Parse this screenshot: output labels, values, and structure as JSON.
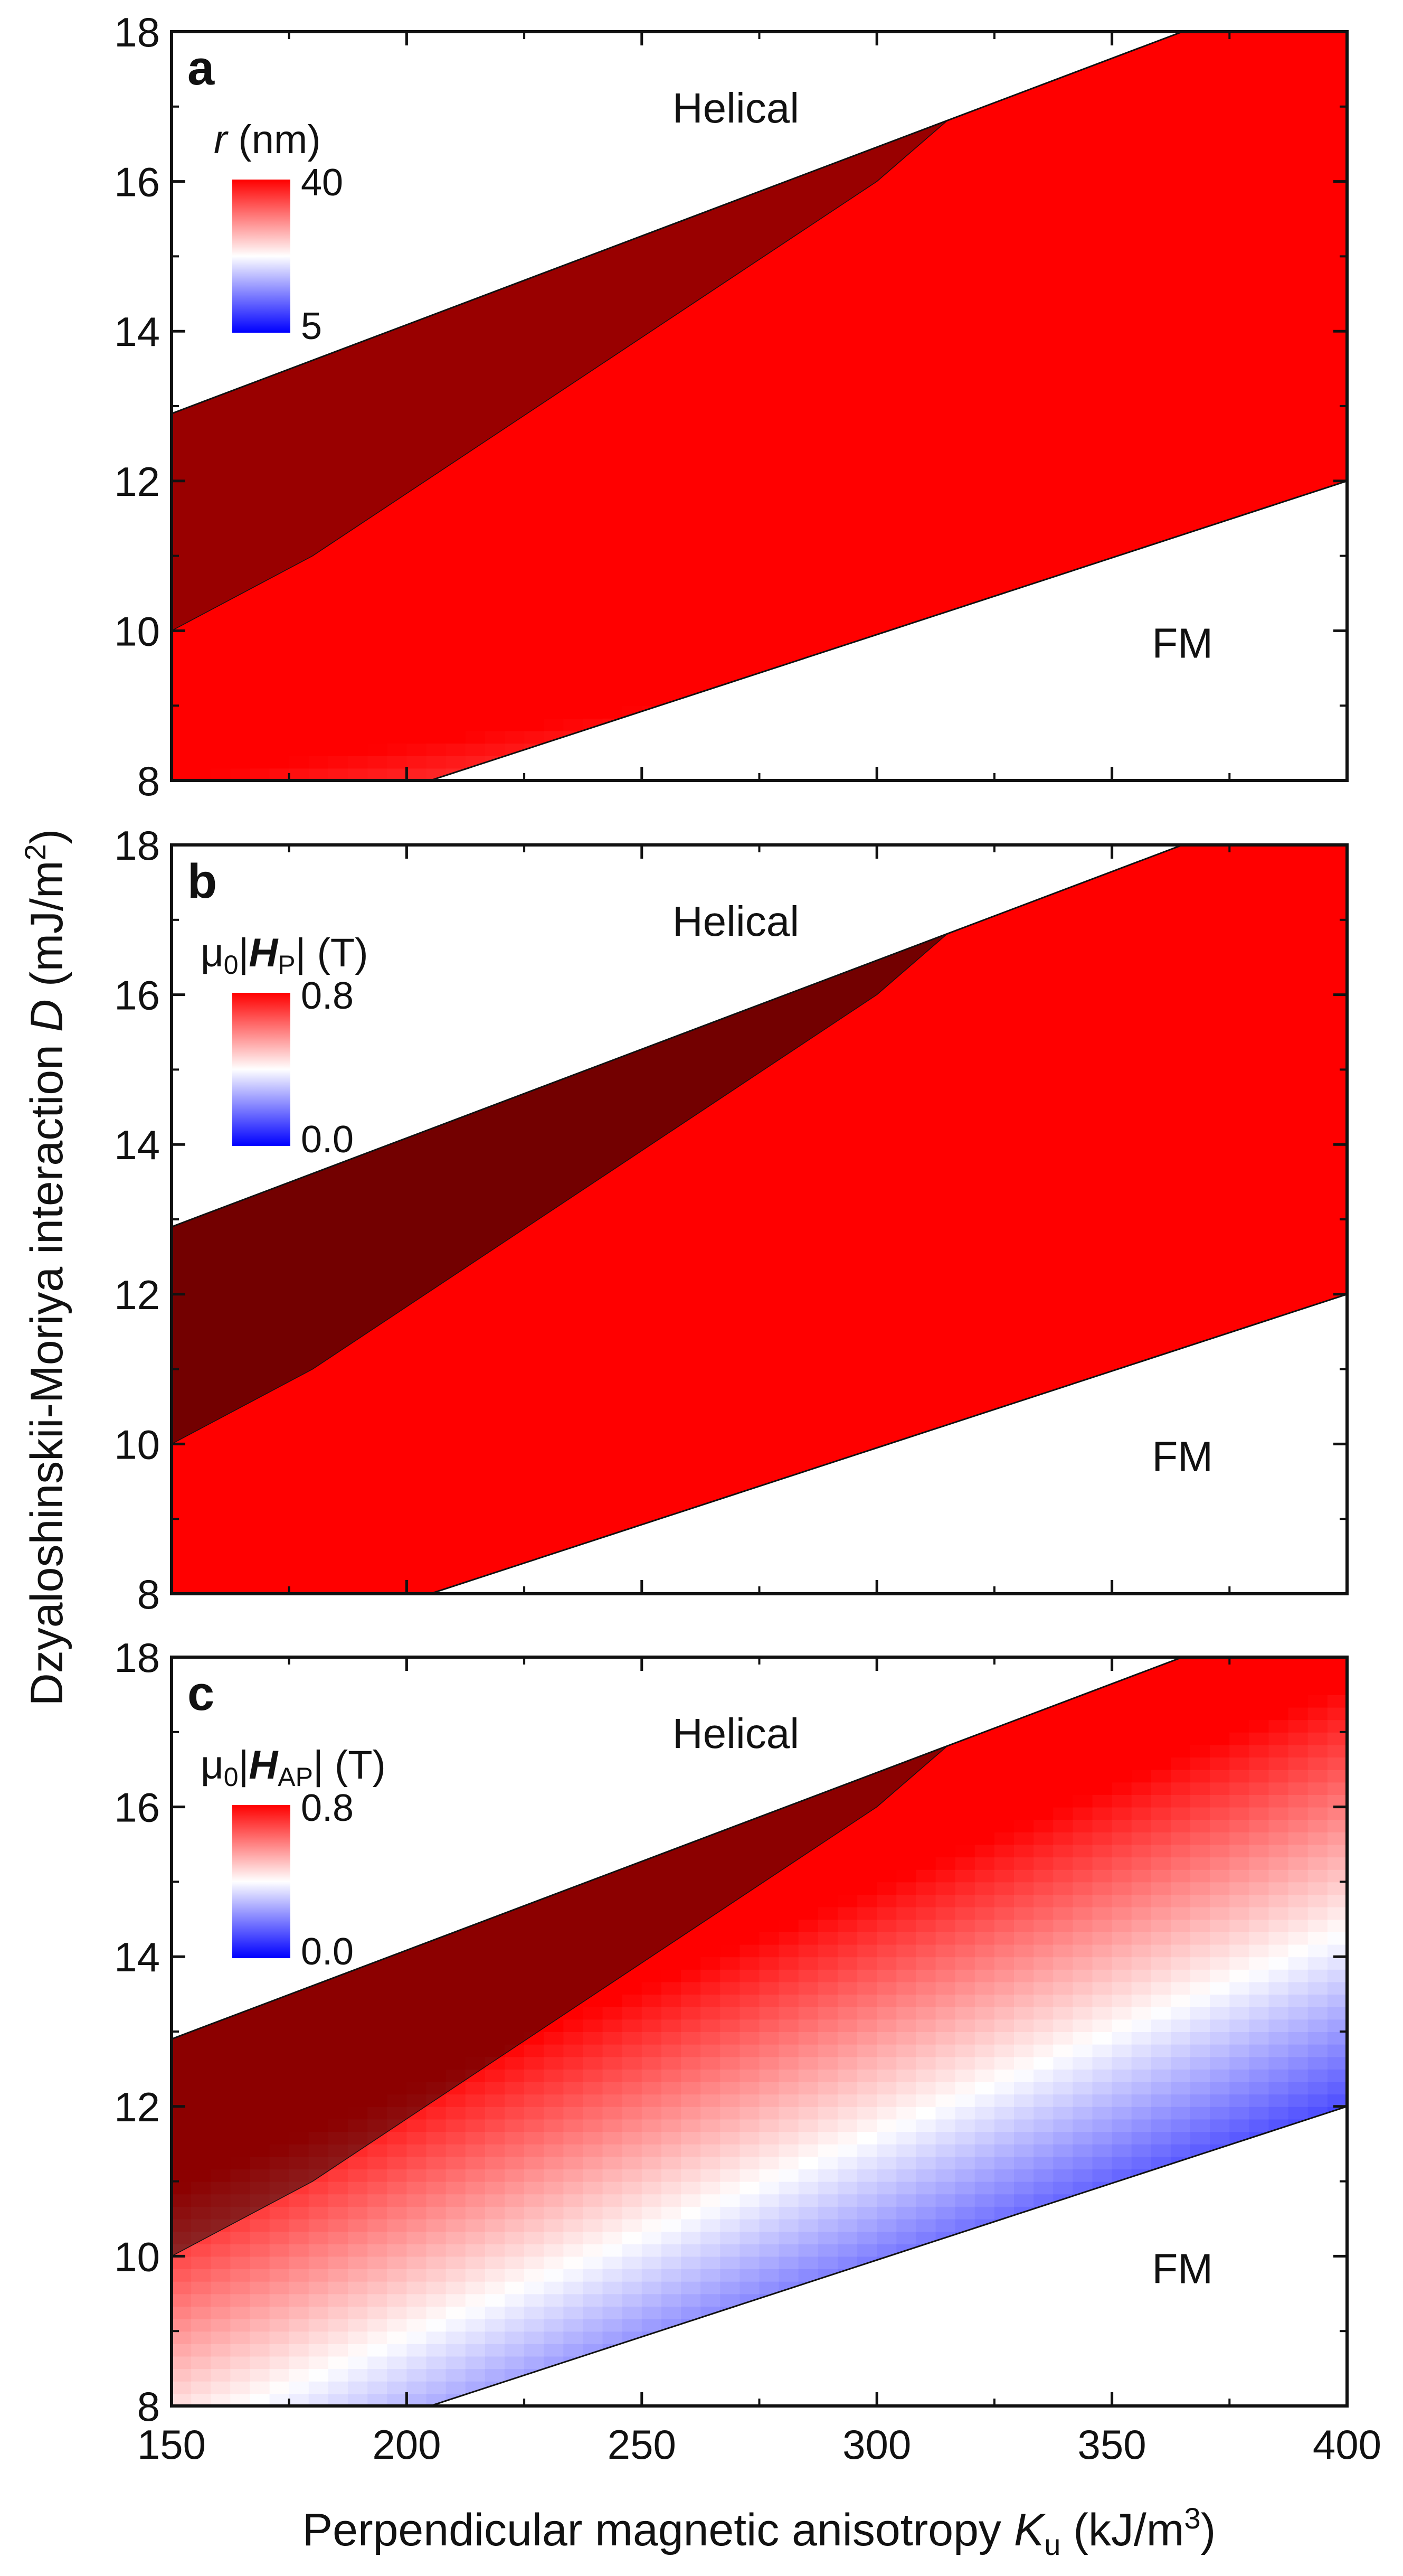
{
  "figure": {
    "ylabel": {
      "main": "Dzyaloshinskii-Moriya interaction ",
      "var": "D",
      "unit_pre": " (mJ/m",
      "unit_sup": "2",
      "unit_post": ")"
    },
    "xlabel": {
      "main": "Perpendicular magnetic anisotropy ",
      "var": "K",
      "sub": "u",
      "unit_pre": " (kJ/m",
      "unit_sup": "3",
      "unit_post": ")"
    }
  },
  "colors": {
    "high": "#ff0000",
    "mid": "#ffffff",
    "low": "#0000ff",
    "shade": "#000000",
    "boundary": "#111111"
  },
  "chart_data": [
    {
      "type": "heatmap",
      "panel": "a",
      "x": {
        "lim": [
          150,
          400
        ],
        "ticks": [
          150,
          200,
          250,
          300,
          350,
          400
        ]
      },
      "y": {
        "lim": [
          8,
          18
        ],
        "ticks": [
          8,
          10,
          12,
          14,
          16,
          18
        ]
      },
      "regions": {
        "top": "Helical",
        "bottom": "FM"
      },
      "colorbar": {
        "var": "r",
        "unit": " (nm)",
        "max": "40",
        "min": "5"
      },
      "upper_boundary": [
        [
          150,
          12.9
        ],
        [
          365,
          18
        ]
      ],
      "lower_boundary": [
        [
          205,
          8
        ],
        [
          400,
          12
        ]
      ],
      "shaded_lower": [
        [
          150,
          10
        ],
        [
          180,
          11
        ],
        [
          300,
          16
        ],
        [
          315,
          16.85
        ]
      ],
      "shade_alpha": 0.4,
      "field": {
        "a": 0.0095,
        "b": 2.3,
        "c": -0.3
      }
    },
    {
      "type": "heatmap",
      "panel": "b",
      "x": {
        "lim": [
          150,
          400
        ],
        "ticks": [
          150,
          200,
          250,
          300,
          350,
          400
        ]
      },
      "y": {
        "lim": [
          8,
          18
        ],
        "ticks": [
          8,
          10,
          12,
          14,
          16,
          18
        ]
      },
      "regions": {
        "top": "Helical",
        "bottom": "FM"
      },
      "colorbar": {
        "prefix": "μ",
        "prefix_sub": "0",
        "var": "H",
        "var_sub": "P",
        "unit": " (T)",
        "max": "0.8",
        "min": "0.0"
      },
      "upper_boundary": [
        [
          150,
          12.9
        ],
        [
          365,
          18
        ]
      ],
      "lower_boundary": [
        [
          205,
          8
        ],
        [
          400,
          12
        ]
      ],
      "shaded_lower": [
        [
          150,
          10
        ],
        [
          180,
          11
        ],
        [
          300,
          16
        ],
        [
          315,
          16.85
        ]
      ],
      "shade_alpha": 0.55,
      "field": {
        "a": 0.0048,
        "b": 3.0,
        "c": 0.05
      }
    },
    {
      "type": "heatmap",
      "panel": "c",
      "x": {
        "lim": [
          150,
          400
        ],
        "ticks": [
          150,
          200,
          250,
          300,
          350,
          400
        ]
      },
      "y": {
        "lim": [
          8,
          18
        ],
        "ticks": [
          8,
          10,
          12,
          14,
          16,
          18
        ]
      },
      "regions": {
        "top": "Helical",
        "bottom": "FM"
      },
      "colorbar": {
        "prefix": "μ",
        "prefix_sub": "0",
        "var": "H",
        "var_sub": "AP",
        "unit": " (T)",
        "max": "0.8",
        "min": "0.0"
      },
      "upper_boundary": [
        [
          150,
          12.9
        ],
        [
          365,
          18
        ]
      ],
      "lower_boundary": [
        [
          205,
          8
        ],
        [
          400,
          12
        ]
      ],
      "shaded_lower": [
        [
          150,
          10
        ],
        [
          180,
          11
        ],
        [
          300,
          16
        ],
        [
          315,
          16.85
        ]
      ],
      "shade_alpha": 0.45,
      "field": {
        "a": 0.027,
        "b": 2.55,
        "c": -0.3
      }
    }
  ]
}
